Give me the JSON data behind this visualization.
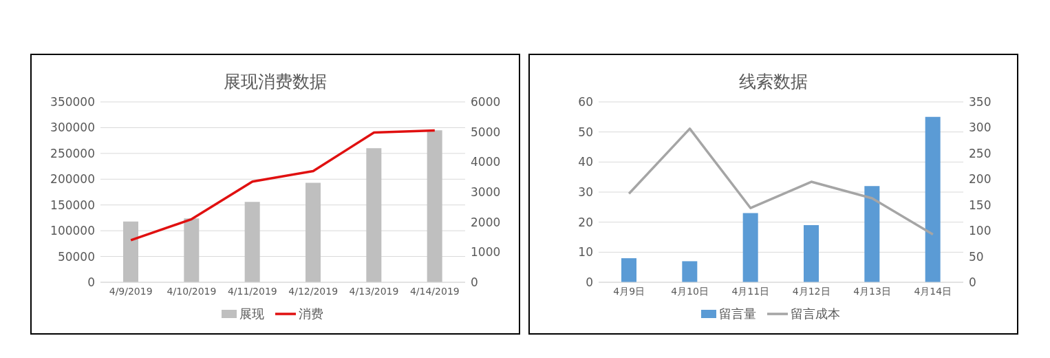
{
  "chart_data": [
    {
      "type": "bar",
      "title": "展现消费数据",
      "categories": [
        "4/9/2019",
        "4/10/2019",
        "4/11/2019",
        "4/12/2019",
        "4/13/2019",
        "4/14/2019"
      ],
      "series": [
        {
          "name": "展现",
          "color": "#bfbfbf",
          "values": [
            118000,
            124000,
            156000,
            193000,
            260000,
            295000
          ]
        },
        {
          "name": "消费",
          "type": "line",
          "axis": "y2",
          "color": "#e01010",
          "values": [
            1400,
            2100,
            3350,
            3700,
            4980,
            5050
          ]
        }
      ],
      "ylim": [
        0,
        350000
      ],
      "yticks": [
        0,
        50000,
        100000,
        150000,
        200000,
        250000,
        300000,
        350000
      ],
      "y2lim": [
        0,
        6000
      ],
      "y2ticks": [
        0,
        1000,
        2000,
        3000,
        4000,
        5000,
        6000
      ],
      "grid": "y",
      "legend": "bottom",
      "marker": "none"
    },
    {
      "type": "bar",
      "title": "线索数据",
      "categories": [
        "4月9日",
        "4月10日",
        "4月11日",
        "4月12日",
        "4月13日",
        "4月14日"
      ],
      "series": [
        {
          "name": "留言量",
          "color": "#5b9bd5",
          "values": [
            8,
            7,
            23,
            19,
            32,
            55
          ]
        },
        {
          "name": "留言成本",
          "type": "line",
          "axis": "y2",
          "color": "#a5a5a5",
          "values": [
            172,
            298,
            144,
            195,
            163,
            93
          ]
        }
      ],
      "ylim": [
        0,
        60
      ],
      "yticks": [
        0,
        10,
        20,
        30,
        40,
        50,
        60
      ],
      "y2lim": [
        0,
        350
      ],
      "y2ticks": [
        0,
        50,
        100,
        150,
        200,
        250,
        300,
        350
      ],
      "grid": "y",
      "legend": "bottom",
      "marker": "none"
    }
  ]
}
